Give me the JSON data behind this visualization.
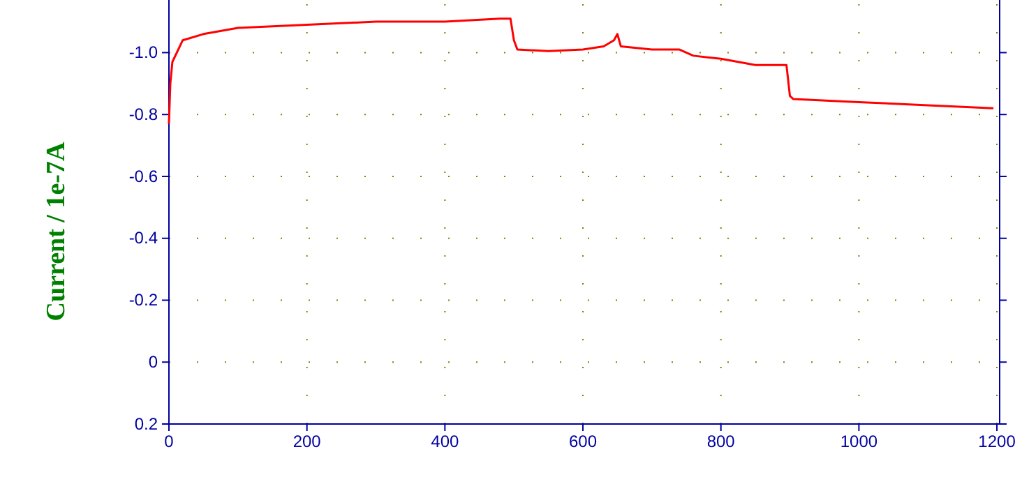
{
  "chart_data": {
    "type": "line",
    "ylabel": "Current / 1e-7A",
    "x": [
      0,
      2,
      5,
      20,
      50,
      100,
      200,
      300,
      400,
      480,
      495,
      500,
      505,
      550,
      600,
      630,
      645,
      650,
      655,
      700,
      740,
      760,
      800,
      850,
      895,
      900,
      905,
      1000,
      1100,
      1195
    ],
    "series": [
      {
        "color": "#ff0000",
        "values": [
          -0.77,
          -0.9,
          -0.97,
          -1.04,
          -1.06,
          -1.08,
          -1.09,
          -1.1,
          -1.1,
          -1.11,
          -1.11,
          -1.04,
          -1.01,
          -1.005,
          -1.01,
          -1.02,
          -1.04,
          -1.06,
          -1.02,
          -1.01,
          -1.01,
          -0.99,
          -0.98,
          -0.96,
          -0.96,
          -0.86,
          -0.85,
          -0.84,
          -0.83,
          -0.82
        ]
      }
    ],
    "xlim": [
      0,
      1204
    ],
    "xticks": [
      0,
      200,
      400,
      600,
      800,
      1000,
      1200
    ],
    "ylim": [
      0.2,
      -1.17
    ],
    "yticks": [
      {
        "value": -1.0,
        "label": "-1.0"
      },
      -0.8,
      -0.6,
      -0.4,
      -0.2,
      0,
      0.2
    ],
    "grid": true,
    "line_style": "solid"
  }
}
